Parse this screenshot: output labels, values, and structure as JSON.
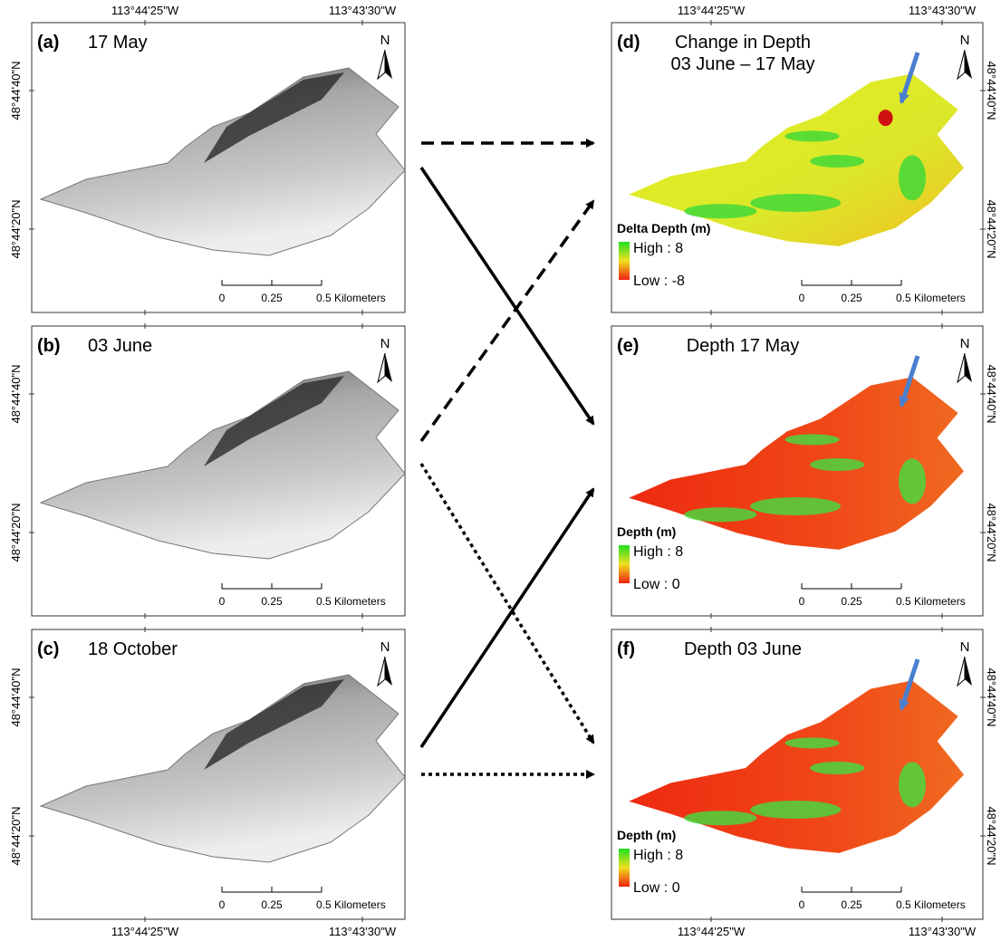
{
  "coordinates": {
    "lon_west": "113°44'25\"W",
    "lon_east": "113°43'30\"W",
    "lat_north": "48°44'40\"N",
    "lat_south": "48°44'20\"N"
  },
  "north": "N",
  "scale_bar": [
    "0",
    "0.25",
    "0.5 Kilometers"
  ],
  "left_panels": [
    {
      "label": "(a)",
      "title": "17 May"
    },
    {
      "label": "(b)",
      "title": "03 June"
    },
    {
      "label": "(c)",
      "title": "18 October"
    }
  ],
  "right_panels": [
    {
      "label": "(d)",
      "title": [
        "Change in Depth",
        "03 June – 17 May"
      ],
      "legend": {
        "title": "Delta Depth (m)",
        "high": "High : 8",
        "low": "Low : -8"
      }
    },
    {
      "label": "(e)",
      "title": [
        "Depth 17 May"
      ],
      "legend": {
        "title": "Depth (m)",
        "high": "High : 8",
        "low": "Low : 0"
      }
    },
    {
      "label": "(f)",
      "title": [
        "Depth 03 June"
      ],
      "legend": {
        "title": "Depth (m)",
        "high": "High : 8",
        "low": "Low : 0"
      }
    }
  ]
}
